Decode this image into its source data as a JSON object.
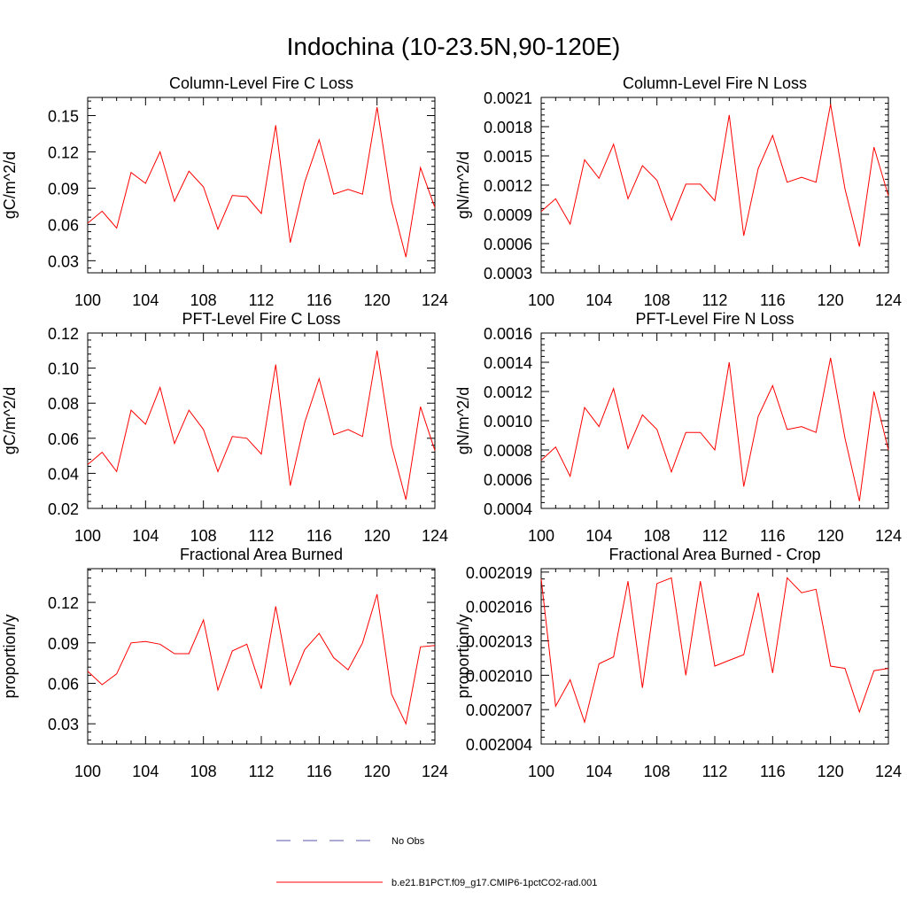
{
  "figure": {
    "title": "Indochina (10-23.5N,90-120E)",
    "series_color": "#ff0000",
    "obs_color": "#5555aa",
    "legend": [
      {
        "label": "No Obs",
        "style": "dashed",
        "color": "#5555aa"
      },
      {
        "label": "b.e21.B1PCT.f09_g17.CMIP6-1pctCO2-rad.001",
        "style": "solid",
        "color": "#ff0000"
      }
    ]
  },
  "chart_data": [
    {
      "type": "line",
      "title": "Column-Level Fire C Loss",
      "ylabel": "gC/m^2/d",
      "xlim": [
        100,
        124
      ],
      "ylim": [
        0.02,
        0.165
      ],
      "xticks": [
        100,
        104,
        108,
        112,
        116,
        120,
        124
      ],
      "yticks": [
        0.03,
        0.06,
        0.09,
        0.12,
        0.15
      ],
      "ytick_labels": [
        "0.03",
        "0.06",
        "0.09",
        "0.12",
        "0.15"
      ],
      "x": [
        100,
        101,
        102,
        103,
        104,
        105,
        106,
        107,
        108,
        109,
        110,
        111,
        112,
        113,
        114,
        115,
        116,
        117,
        118,
        119,
        120,
        121,
        122,
        123,
        124
      ],
      "series": [
        {
          "values": [
            0.061,
            0.071,
            0.057,
            0.103,
            0.094,
            0.12,
            0.079,
            0.104,
            0.091,
            0.056,
            0.084,
            0.083,
            0.069,
            0.142,
            0.045,
            0.095,
            0.13,
            0.085,
            0.089,
            0.085,
            0.157,
            0.079,
            0.033,
            0.107,
            0.074
          ]
        }
      ]
    },
    {
      "type": "line",
      "title": "Column-Level Fire N Loss",
      "ylabel": "gN/m^2/d",
      "xlim": [
        100,
        124
      ],
      "ylim": [
        0.0003,
        0.0021
      ],
      "xticks": [
        100,
        104,
        108,
        112,
        116,
        120,
        124
      ],
      "yticks": [
        0.0003,
        0.0006,
        0.0009,
        0.0012,
        0.0015,
        0.0018,
        0.0021
      ],
      "ytick_labels": [
        "0.0003",
        "0.0006",
        "0.0009",
        "0.0012",
        "0.0015",
        "0.0018",
        "0.0021"
      ],
      "x": [
        100,
        101,
        102,
        103,
        104,
        105,
        106,
        107,
        108,
        109,
        110,
        111,
        112,
        113,
        114,
        115,
        116,
        117,
        118,
        119,
        120,
        121,
        122,
        123,
        124
      ],
      "series": [
        {
          "values": [
            0.00093,
            0.00106,
            0.0008,
            0.00146,
            0.00127,
            0.00162,
            0.00106,
            0.0014,
            0.00125,
            0.00084,
            0.00121,
            0.00121,
            0.00104,
            0.00192,
            0.00068,
            0.00137,
            0.00171,
            0.00123,
            0.00128,
            0.00123,
            0.00203,
            0.00116,
            0.00057,
            0.00159,
            0.00109
          ]
        }
      ]
    },
    {
      "type": "line",
      "title": "PFT-Level Fire C Loss",
      "ylabel": "gC/m^2/d",
      "xlim": [
        100,
        124
      ],
      "ylim": [
        0.02,
        0.12
      ],
      "xticks": [
        100,
        104,
        108,
        112,
        116,
        120,
        124
      ],
      "yticks": [
        0.02,
        0.04,
        0.06,
        0.08,
        0.1,
        0.12
      ],
      "ytick_labels": [
        "0.02",
        "0.04",
        "0.06",
        "0.08",
        "0.10",
        "0.12"
      ],
      "x": [
        100,
        101,
        102,
        103,
        104,
        105,
        106,
        107,
        108,
        109,
        110,
        111,
        112,
        113,
        114,
        115,
        116,
        117,
        118,
        119,
        120,
        121,
        122,
        123,
        124
      ],
      "series": [
        {
          "values": [
            0.045,
            0.052,
            0.041,
            0.076,
            0.068,
            0.089,
            0.057,
            0.076,
            0.065,
            0.041,
            0.061,
            0.06,
            0.051,
            0.102,
            0.033,
            0.069,
            0.094,
            0.062,
            0.065,
            0.061,
            0.11,
            0.056,
            0.025,
            0.078,
            0.053
          ]
        }
      ]
    },
    {
      "type": "line",
      "title": "PFT-Level Fire N Loss",
      "ylabel": "gN/m^2/d",
      "xlim": [
        100,
        124
      ],
      "ylim": [
        0.0004,
        0.0016
      ],
      "xticks": [
        100,
        104,
        108,
        112,
        116,
        120,
        124
      ],
      "yticks": [
        0.0004,
        0.0006,
        0.0008,
        0.001,
        0.0012,
        0.0014,
        0.0016
      ],
      "ytick_labels": [
        "0.0004",
        "0.0006",
        "0.0008",
        "0.0010",
        "0.0012",
        "0.0014",
        "0.0016"
      ],
      "x": [
        100,
        101,
        102,
        103,
        104,
        105,
        106,
        107,
        108,
        109,
        110,
        111,
        112,
        113,
        114,
        115,
        116,
        117,
        118,
        119,
        120,
        121,
        122,
        123,
        124
      ],
      "series": [
        {
          "values": [
            0.00073,
            0.00082,
            0.00062,
            0.00109,
            0.00096,
            0.00122,
            0.00081,
            0.00104,
            0.00094,
            0.00065,
            0.00092,
            0.00092,
            0.0008,
            0.0014,
            0.00055,
            0.00103,
            0.00124,
            0.00094,
            0.00096,
            0.00092,
            0.00143,
            0.00088,
            0.00045,
            0.0012,
            0.0008
          ]
        }
      ]
    },
    {
      "type": "line",
      "title": "Fractional Area Burned",
      "ylabel": "proportion/y",
      "xlim": [
        100,
        124
      ],
      "ylim": [
        0.015,
        0.145
      ],
      "xticks": [
        100,
        104,
        108,
        112,
        116,
        120,
        124
      ],
      "yticks": [
        0.03,
        0.06,
        0.09,
        0.12
      ],
      "ytick_labels": [
        "0.03",
        "0.06",
        "0.09",
        "0.12"
      ],
      "x": [
        100,
        101,
        102,
        103,
        104,
        105,
        106,
        107,
        108,
        109,
        110,
        111,
        112,
        113,
        114,
        115,
        116,
        117,
        118,
        119,
        120,
        121,
        122,
        123,
        124
      ],
      "series": [
        {
          "values": [
            0.069,
            0.059,
            0.067,
            0.09,
            0.091,
            0.089,
            0.082,
            0.082,
            0.107,
            0.055,
            0.084,
            0.089,
            0.056,
            0.117,
            0.059,
            0.085,
            0.097,
            0.079,
            0.07,
            0.09,
            0.126,
            0.052,
            0.03,
            0.087,
            0.088
          ]
        }
      ]
    },
    {
      "type": "line",
      "title": "Fractional Area Burned - Crop",
      "ylabel": "proportion/y",
      "xlim": [
        100,
        124
      ],
      "ylim": [
        0.002004,
        0.0020193
      ],
      "xticks": [
        100,
        104,
        108,
        112,
        116,
        120,
        124
      ],
      "yticks": [
        0.002004,
        0.002007,
        0.00201,
        0.002013,
        0.002016,
        0.002019
      ],
      "ytick_labels": [
        "0.002004",
        "0.002007",
        "0.002010",
        "0.002013",
        "0.002016",
        "0.002019"
      ],
      "x": [
        100,
        101,
        102,
        103,
        104,
        105,
        106,
        107,
        108,
        109,
        110,
        111,
        112,
        113,
        114,
        115,
        116,
        117,
        118,
        119,
        120,
        121,
        122,
        123,
        124
      ],
      "series": [
        {
          "values": [
            0.0020184,
            0.0020073,
            0.0020096,
            0.0020059,
            0.002011,
            0.0020116,
            0.0020182,
            0.0020089,
            0.002018,
            0.0020185,
            0.00201,
            0.0020182,
            0.0020108,
            0.0020113,
            0.0020118,
            0.0020172,
            0.0020102,
            0.0020185,
            0.0020172,
            0.0020175,
            0.0020108,
            0.0020106,
            0.0020068,
            0.0020104,
            0.0020106
          ]
        }
      ]
    }
  ]
}
